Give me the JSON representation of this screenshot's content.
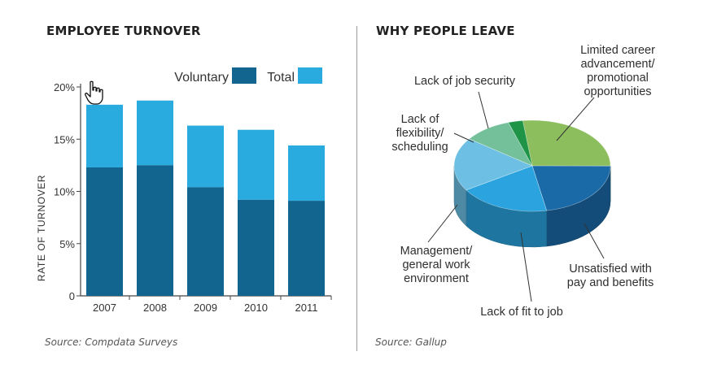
{
  "left": {
    "heading": "EMPLOYEE TURNOVER",
    "source": "Source: Compdata Surveys"
  },
  "right": {
    "heading": "WHY PEOPLE LEAVE",
    "source": "Source: Gallup"
  },
  "colors": {
    "voluntary": "#11658e",
    "total": "#29abe0",
    "axis": "#444444"
  },
  "chart_data": [
    {
      "type": "bar",
      "title": "EMPLOYEE TURNOVER",
      "stacked": true,
      "categories": [
        "2007",
        "2008",
        "2009",
        "2010",
        "2011"
      ],
      "series": [
        {
          "name": "Voluntary",
          "values": [
            12.3,
            12.5,
            10.4,
            9.2,
            9.1
          ],
          "color": "#11658e"
        },
        {
          "name": "Total",
          "values": [
            18.3,
            18.7,
            16.3,
            15.9,
            14.4
          ],
          "color": "#29abe0"
        }
      ],
      "ylabel": "RATE OF TURNOVER",
      "ylim": [
        0,
        20
      ],
      "yticks": [
        {
          "value": 0,
          "label": "0"
        },
        {
          "value": 5,
          "label": "5%"
        },
        {
          "value": 10,
          "label": "10%"
        },
        {
          "value": 15,
          "label": "15%"
        },
        {
          "value": 20,
          "label": "20%"
        }
      ],
      "legend": "top-right",
      "grid": false
    },
    {
      "type": "pie",
      "title": "WHY PEOPLE LEAVE",
      "three_d": true,
      "slices": [
        {
          "label": "Limited career advancement/ promotional opportunities",
          "lines": [
            "Limited career",
            "advancement/",
            "promotional",
            "opportunities"
          ],
          "value": 27,
          "color": "#8dbe5e"
        },
        {
          "label": "Unsatisfied with pay and benefits",
          "lines": [
            "Unsatisfied with",
            "pay and benefits"
          ],
          "value": 22,
          "color": "#1b6aa8"
        },
        {
          "label": "Lack of fit to job",
          "lines": [
            "Lack of fit to job"
          ],
          "value": 19,
          "color": "#2aa3de"
        },
        {
          "label": "Management/ general work environment",
          "lines": [
            "Management/",
            "general work",
            "environment"
          ],
          "value": 19,
          "color": "#6dc0e4"
        },
        {
          "label": "Lack of flexibility/ scheduling",
          "lines": [
            "Lack of",
            "flexibility/",
            "scheduling"
          ],
          "value": 10,
          "color": "#74c09a"
        },
        {
          "label": "Lack of job security",
          "lines": [
            "Lack of job security"
          ],
          "value": 3,
          "color": "#1f9446"
        }
      ]
    }
  ]
}
